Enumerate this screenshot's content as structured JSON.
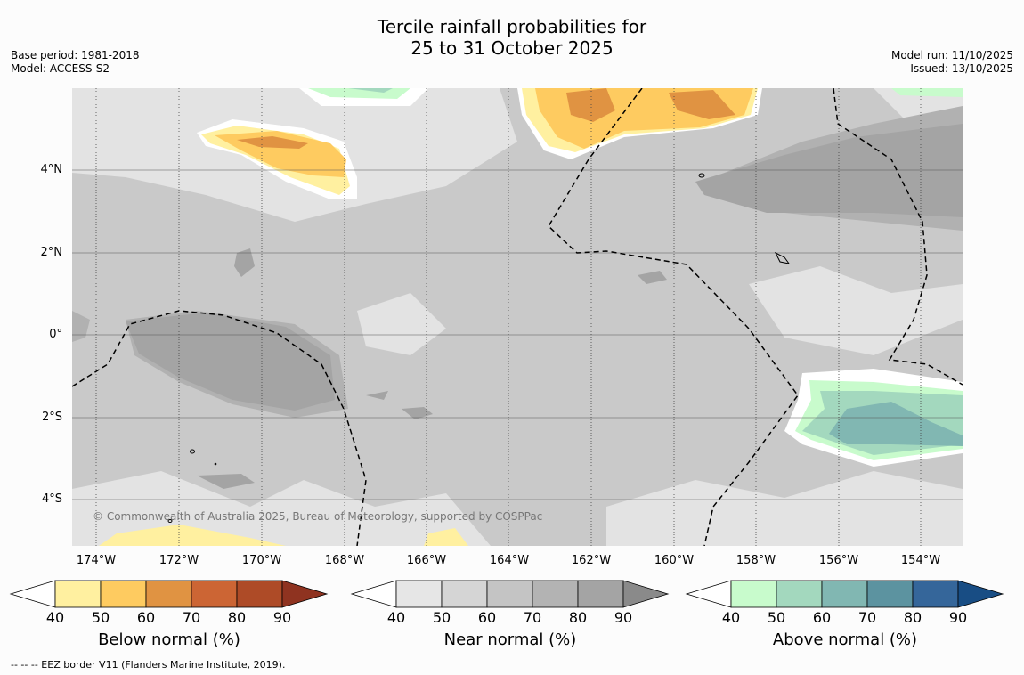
{
  "title_line1": "Tercile rainfall probabilities for",
  "title_line2": "25 to 31 October 2025",
  "base_period": "Base period: 1981-2018",
  "model": "Model: ACCESS-S2",
  "model_run": "Model run: 11/10/2025",
  "issued": "Issued: 13/10/2025",
  "lat_labels": [
    "4°N",
    "2°N",
    "0°",
    "2°S",
    "4°S"
  ],
  "lon_labels": [
    "174°W",
    "172°W",
    "170°W",
    "168°W",
    "166°W",
    "164°W",
    "162°W",
    "160°W",
    "158°W",
    "156°W",
    "154°W"
  ],
  "copyright": "© Commonwealth of Australia 2025, Bureau of Meteorology, supported by COSPPac",
  "colorbars": [
    {
      "label": "Below normal (%)",
      "ticks": [
        "40",
        "50",
        "60",
        "70",
        "80",
        "90"
      ],
      "colors": [
        "#fff0a0",
        "#fecb60",
        "#e09342",
        "#cc6534",
        "#ae4b27"
      ],
      "end_color": "#8f3320"
    },
    {
      "label": "Near normal (%)",
      "ticks": [
        "40",
        "50",
        "60",
        "70",
        "80",
        "90"
      ],
      "colors": [
        "#e6e6e6",
        "#d5d5d5",
        "#c4c4c4",
        "#b3b3b3",
        "#a4a4a4"
      ],
      "end_color": "#8a8a8a"
    },
    {
      "label": "Above normal (%)",
      "ticks": [
        "40",
        "50",
        "60",
        "70",
        "80",
        "90"
      ],
      "colors": [
        "#c8fbcc",
        "#a3d8be",
        "#81b7b2",
        "#5c93a0",
        "#35669a"
      ],
      "end_color": "#184d84"
    }
  ],
  "eez_note": "--  --  -- EEZ border V11 (Flanders Marine Institute, 2019).",
  "colors": {
    "map_base": "#c9c9c9",
    "gridline": "#555555"
  }
}
